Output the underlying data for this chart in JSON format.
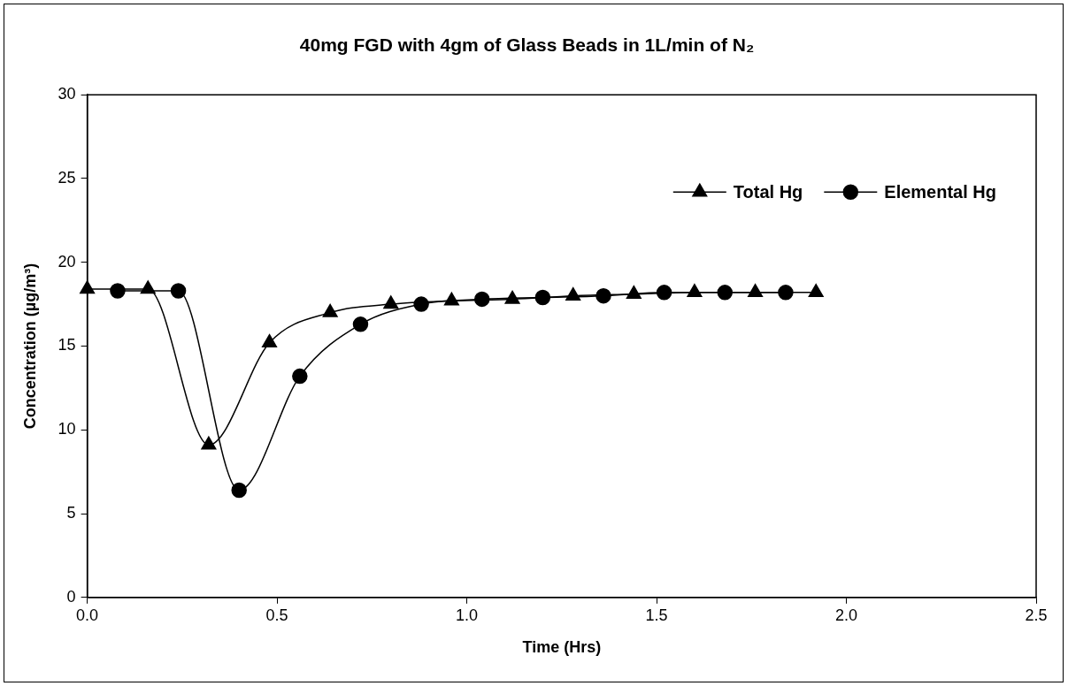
{
  "chart_data": {
    "type": "line",
    "title": "40mg FGD with 4gm of Glass Beads in 1L/min of N₂",
    "xlabel": "Time (Hrs)",
    "ylabel": "Concentration (µg/m³)",
    "xlim": [
      0,
      2.5
    ],
    "xticks": [
      {
        "value": 0,
        "label": "0.0"
      },
      {
        "value": 0.5,
        "label": "0.5"
      },
      {
        "value": 1,
        "label": "1.0"
      },
      {
        "value": 1.5,
        "label": "1.5"
      },
      {
        "value": 2,
        "label": "2.0"
      },
      {
        "value": 2.5,
        "label": "2.5"
      }
    ],
    "ylim": [
      0,
      30
    ],
    "yticks": [
      0,
      5,
      10,
      15,
      20,
      25,
      30
    ],
    "grid": false,
    "legend": "top right",
    "series": [
      {
        "name": "Total Hg",
        "color": "#000000",
        "marker": "triangle",
        "x": [
          0,
          0.16,
          0.32,
          0.48,
          0.64,
          0.8,
          0.96,
          1.12,
          1.28,
          1.44,
          1.6,
          1.76,
          1.92
        ],
        "values": [
          18.4,
          18.4,
          9.1,
          15.2,
          17.0,
          17.5,
          17.7,
          17.8,
          18.0,
          18.1,
          18.2,
          18.2,
          18.2
        ]
      },
      {
        "name": "Elemental Hg",
        "color": "#000000",
        "marker": "circle",
        "x": [
          0.08,
          0.24,
          0.4,
          0.56,
          0.72,
          0.88,
          1.04,
          1.2,
          1.36,
          1.52,
          1.68,
          1.84
        ],
        "values": [
          18.3,
          18.3,
          6.4,
          13.2,
          16.3,
          17.5,
          17.8,
          17.9,
          18.0,
          18.2,
          18.2,
          18.2
        ]
      }
    ]
  }
}
